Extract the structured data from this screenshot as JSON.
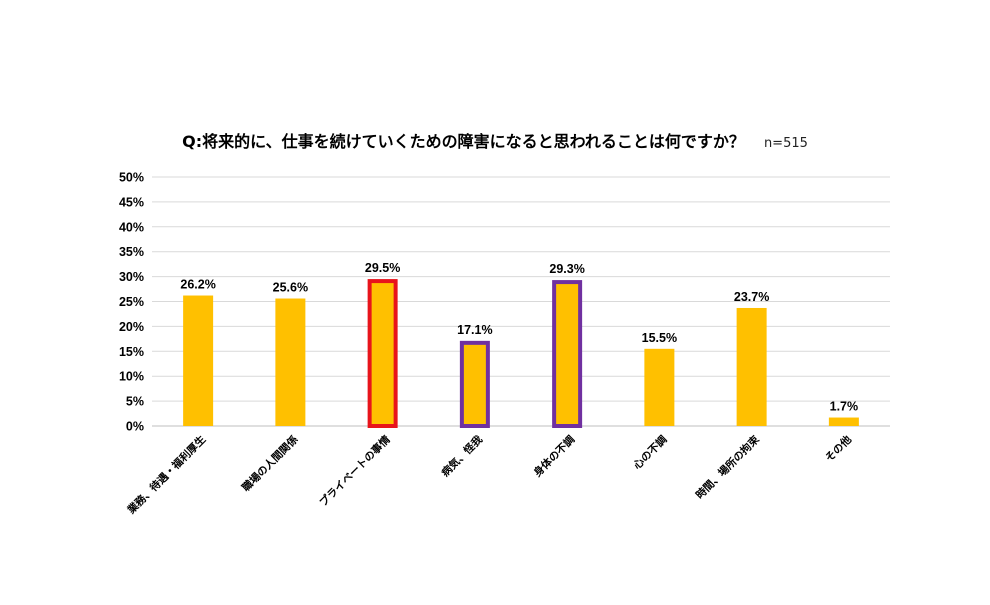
{
  "chart_data": {
    "type": "bar",
    "title": "Q:将来的に、仕事を続けていくための障害になると思われることは何ですか？",
    "sample_size": "n=515",
    "categories": [
      "業務、待遇・福利厚生",
      "職場の人間関係",
      "プライベートの事情",
      "病気、怪我",
      "身体の不調",
      "心の不調",
      "時間、場所の拘束",
      "その他"
    ],
    "values": [
      26.2,
      25.6,
      29.5,
      17.1,
      29.3,
      15.5,
      23.7,
      1.7
    ],
    "data_labels": [
      "26.2%",
      "25.6%",
      "29.5%",
      "17.1%",
      "29.3%",
      "15.5%",
      "23.7%",
      "1.7%"
    ],
    "highlights": [
      "none",
      "none",
      "red",
      "purple",
      "purple",
      "none",
      "none",
      "none"
    ],
    "ylim": [
      0,
      50
    ],
    "y_ticks": [
      "0%",
      "5%",
      "10%",
      "15%",
      "20%",
      "25%",
      "30%",
      "35%",
      "40%",
      "45%",
      "50%"
    ],
    "xlabel": "",
    "ylabel": "",
    "grid": true,
    "legend": "none",
    "colors": {
      "bar": "#FFC000",
      "highlight_red": "#E8141B",
      "highlight_purple": "#7030A0",
      "grid": "#D9D9D9",
      "axis": "#BFBFBF"
    }
  }
}
